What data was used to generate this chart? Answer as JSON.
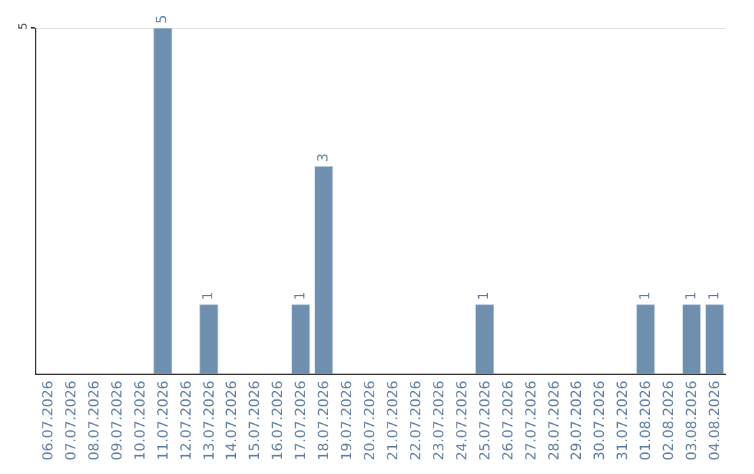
{
  "chart_data": {
    "type": "bar",
    "categories": [
      "06.07.2026",
      "07.07.2026",
      "08.07.2026",
      "09.07.2026",
      "10.07.2026",
      "11.07.2026",
      "12.07.2026",
      "13.07.2026",
      "14.07.2026",
      "15.07.2026",
      "16.07.2026",
      "17.07.2026",
      "18.07.2026",
      "19.07.2026",
      "20.07.2026",
      "21.07.2026",
      "22.07.2026",
      "23.07.2026",
      "24.07.2026",
      "25.07.2026",
      "26.07.2026",
      "27.07.2026",
      "28.07.2026",
      "29.07.2026",
      "30.07.2026",
      "31.07.2026",
      "01.08.2026",
      "02.08.2026",
      "03.08.2026",
      "04.08.2026"
    ],
    "values": [
      null,
      null,
      null,
      null,
      null,
      5,
      null,
      1,
      null,
      null,
      null,
      1,
      3,
      null,
      null,
      null,
      null,
      null,
      null,
      1,
      null,
      null,
      null,
      null,
      null,
      null,
      1,
      null,
      1,
      1
    ],
    "value_labels": [
      null,
      null,
      null,
      null,
      null,
      "5",
      null,
      "1",
      null,
      null,
      null,
      "1",
      "3",
      null,
      null,
      null,
      null,
      null,
      null,
      "1",
      null,
      null,
      null,
      null,
      null,
      null,
      "1",
      null,
      "1",
      "1"
    ],
    "color": "#6f8fae",
    "ylim": [
      0,
      5
    ],
    "yticks": [
      5
    ],
    "ref_lines": [
      {
        "axis": "y",
        "value": 5,
        "color": "#cccccc"
      }
    ],
    "legend": false
  }
}
